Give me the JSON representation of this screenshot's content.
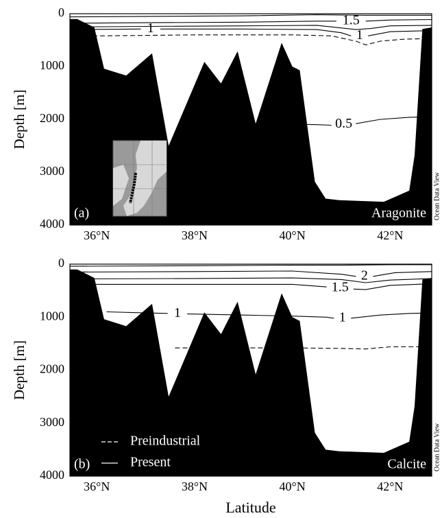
{
  "chart_data": [
    {
      "type": "contour",
      "panel_label": "(a)",
      "mineral": "Aragonite",
      "ylabel": "Depth [m]",
      "watermark": "Ocean Data View",
      "xlim": [
        35.45,
        42.85
      ],
      "ylim": [
        0,
        4000
      ],
      "y_inverted": true,
      "xticks": [
        {
          "value": 36,
          "label": "36°N"
        },
        {
          "value": 38,
          "label": "38°N"
        },
        {
          "value": 40,
          "label": "40°N"
        },
        {
          "value": 42,
          "label": "42°N"
        }
      ],
      "yticks": [
        0,
        1000,
        2000,
        3000,
        4000
      ],
      "bathymetry": {
        "color": "#000000",
        "lat": [
          35.45,
          35.6,
          35.95,
          36.15,
          36.6,
          37.13,
          37.47,
          38.2,
          38.54,
          38.88,
          39.25,
          39.78,
          40.0,
          40.15,
          40.46,
          40.68,
          40.96,
          41.87,
          42.39,
          42.5,
          42.66,
          42.85
        ],
        "depth": [
          100,
          100,
          260,
          1040,
          1170,
          750,
          2500,
          910,
          1320,
          710,
          2080,
          550,
          1000,
          1070,
          3180,
          3500,
          3530,
          3560,
          3350,
          2680,
          290,
          260
        ]
      },
      "series": [
        {
          "line_style": "dashed",
          "color": "#000000",
          "contours": [
            {
              "lat": [
                35.45,
                36,
                37,
                38,
                39,
                40,
                40.8,
                41.3,
                41.5,
                41.8,
                42.3,
                42.85
              ],
              "depth": [
                430,
                420,
                410,
                400,
                400,
                400,
                420,
                520,
                590,
                520,
                480,
                470
              ]
            }
          ]
        },
        {
          "line_style": "solid",
          "color": "#000000",
          "contours": [
            {
              "lat": [
                35.45,
                37,
                39,
                40.5,
                41.5,
                42.85
              ],
              "depth": [
                60,
                50,
                40,
                20,
                30,
                30
              ]
            },
            {
              "level": 1.5,
              "lat": [
                35.45,
                37,
                39,
                40.5,
                40.9,
                null,
                41.5,
                42,
                42.85
              ],
              "depth": [
                180,
                170,
                160,
                140,
                140,
                null,
                140,
                120,
                110
              ]
            },
            {
              "lat": [
                35.45,
                37,
                39,
                40.5,
                41.3,
                41.6,
                42,
                42.85
              ],
              "depth": [
                250,
                240,
                230,
                220,
                300,
                280,
                230,
                220
              ]
            },
            {
              "level": 1,
              "lat": [
                35.45,
                36.9,
                null,
                37.3,
                39,
                40.5,
                41.0,
                41.2,
                null,
                41.55,
                42,
                42.85
              ],
              "depth": [
                300,
                290,
                null,
                290,
                290,
                300,
                360,
                420,
                null,
                420,
                340,
                320
              ]
            },
            {
              "level": 0.5,
              "lat": [
                37.8,
                38.5,
                39.5,
                40.5,
                40.8,
                null,
                41.3,
                41.8,
                42.4,
                42.85
              ],
              "depth": [
                2080,
                2080,
                2080,
                2100,
                2110,
                null,
                2080,
                2000,
                1960,
                1950
              ]
            }
          ]
        }
      ]
    },
    {
      "type": "contour",
      "panel_label": "(b)",
      "mineral": "Calcite",
      "ylabel": "Depth [m]",
      "xlabel": "Latitude",
      "watermark": "Ocean Data View",
      "xlim": [
        35.45,
        42.85
      ],
      "ylim": [
        0,
        4000
      ],
      "y_inverted": true,
      "xticks": [
        {
          "value": 36,
          "label": "36°N"
        },
        {
          "value": 38,
          "label": "38°N"
        },
        {
          "value": 40,
          "label": "40°N"
        },
        {
          "value": 42,
          "label": "42°N"
        }
      ],
      "yticks": [
        0,
        1000,
        2000,
        3000,
        4000
      ],
      "bathymetry": {
        "color": "#000000",
        "lat": [
          35.45,
          35.6,
          35.95,
          36.15,
          36.6,
          37.13,
          37.47,
          38.2,
          38.54,
          38.88,
          39.25,
          39.78,
          40.0,
          40.15,
          40.46,
          40.68,
          40.96,
          41.87,
          42.39,
          42.5,
          42.66,
          42.85
        ],
        "depth": [
          100,
          100,
          260,
          1040,
          1170,
          750,
          2500,
          910,
          1320,
          710,
          2080,
          550,
          1000,
          1070,
          3180,
          3500,
          3530,
          3560,
          3350,
          2680,
          290,
          260
        ]
      },
      "series": [
        {
          "name": "Preindustrial",
          "line_style": "dashed",
          "color": "#000000",
          "contours": [
            {
              "lat": [
                37.6,
                39,
                40,
                41,
                41.5,
                42,
                42.85
              ],
              "depth": [
                1580,
                1580,
                1580,
                1590,
                1600,
                1560,
                1560
              ]
            }
          ]
        },
        {
          "name": "Present",
          "line_style": "solid",
          "color": "#000000",
          "contours": [
            {
              "lat": [
                35.45,
                38,
                40,
                41,
                42,
                42.85
              ],
              "depth": [
                40,
                30,
                20,
                20,
                10,
                10
              ]
            },
            {
              "level": 2,
              "lat": [
                35.45,
                38,
                40,
                41.0,
                41.3,
                null,
                41.65,
                42.1,
                42.85
              ],
              "depth": [
                150,
                140,
                130,
                190,
                230,
                null,
                230,
                160,
                140
              ]
            },
            {
              "lat": [
                35.45,
                38,
                40,
                41,
                41.5,
                42,
                42.85
              ],
              "depth": [
                280,
                270,
                260,
                290,
                350,
                300,
                270
              ]
            },
            {
              "level": 1.5,
              "lat": [
                35.45,
                38,
                40,
                40.7,
                null,
                41.25,
                41.5,
                42,
                42.85
              ],
              "depth": [
                380,
                380,
                380,
                430,
                null,
                470,
                480,
                400,
                370
              ]
            },
            {
              "level": 1,
              "lat": [
                36.2,
                37,
                37.45,
                null,
                37.85,
                39,
                40,
                40.7,
                40.85,
                null,
                41.2,
                41.8,
                42.4,
                42.85
              ],
              "depth": [
                900,
                920,
                930,
                null,
                940,
                960,
                980,
                1000,
                1020,
                null,
                1020,
                960,
                930,
                920
              ]
            }
          ]
        }
      ]
    }
  ]
}
